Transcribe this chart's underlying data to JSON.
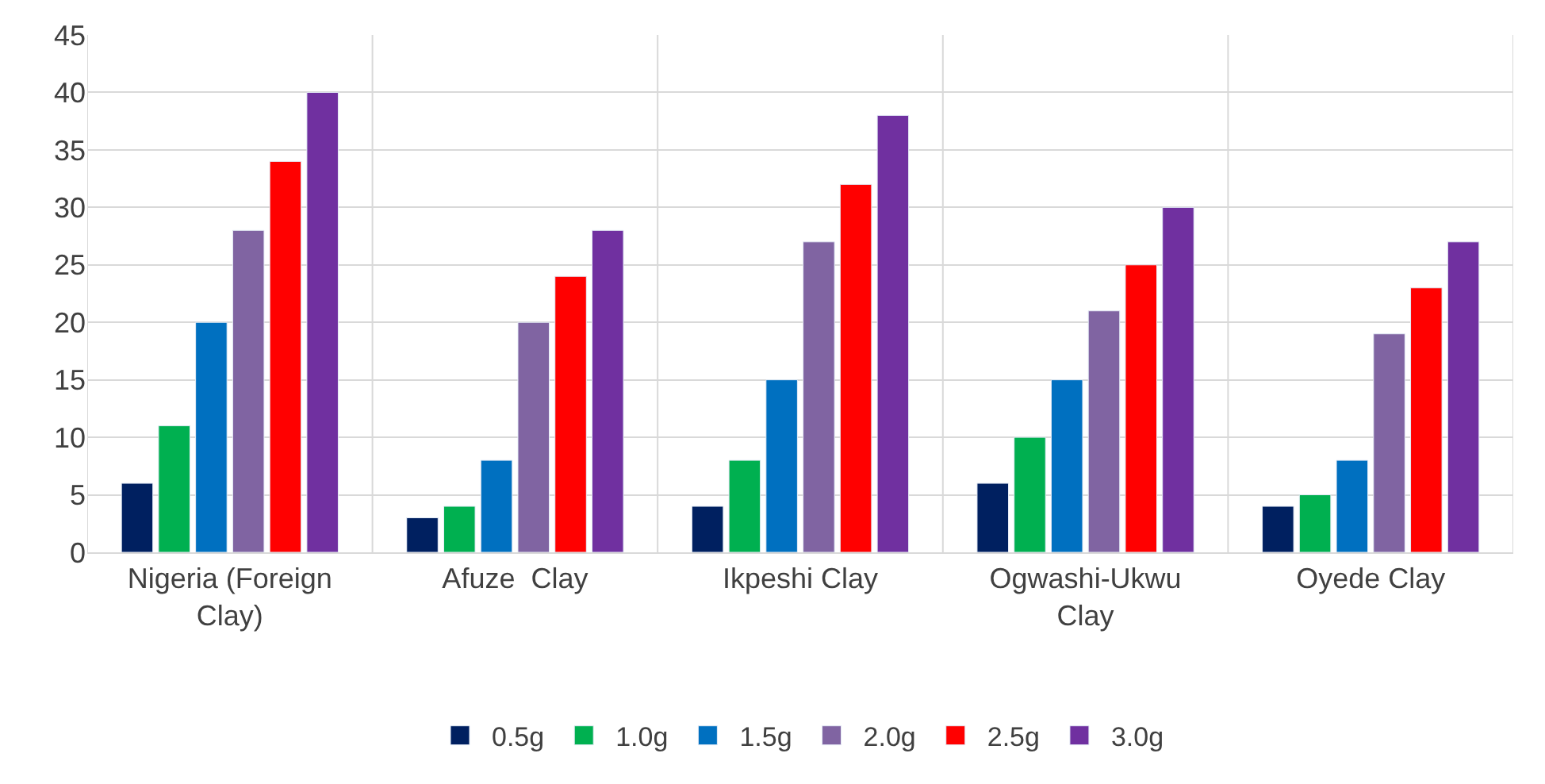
{
  "chart_data": {
    "type": "bar",
    "categories": [
      "Nigeria (Foreign Clay)",
      "Afuze  Clay",
      "Ikpeshi Clay",
      "Ogwashi-Ukwu Clay",
      "Oyede Clay"
    ],
    "series": [
      {
        "name": "0.5g",
        "color": "#002060",
        "values": [
          6,
          3,
          4,
          6,
          4
        ]
      },
      {
        "name": "1.0g",
        "color": "#00b050",
        "values": [
          11,
          4,
          8,
          10,
          5
        ]
      },
      {
        "name": "1.5g",
        "color": "#0070c0",
        "values": [
          20,
          8,
          15,
          15,
          8
        ]
      },
      {
        "name": "2.0g",
        "color": "#8064a2",
        "values": [
          28,
          20,
          27,
          21,
          19
        ]
      },
      {
        "name": "2.5g",
        "color": "#ff0000",
        "values": [
          34,
          24,
          32,
          25,
          23
        ]
      },
      {
        "name": "3.0g",
        "color": "#7030a0",
        "values": [
          40,
          28,
          38,
          30,
          27
        ]
      }
    ],
    "ylim": [
      0,
      45
    ],
    "yticks": [
      0,
      5,
      10,
      15,
      20,
      25,
      30,
      35,
      40,
      45
    ],
    "grid": true,
    "legend": "bottom"
  }
}
